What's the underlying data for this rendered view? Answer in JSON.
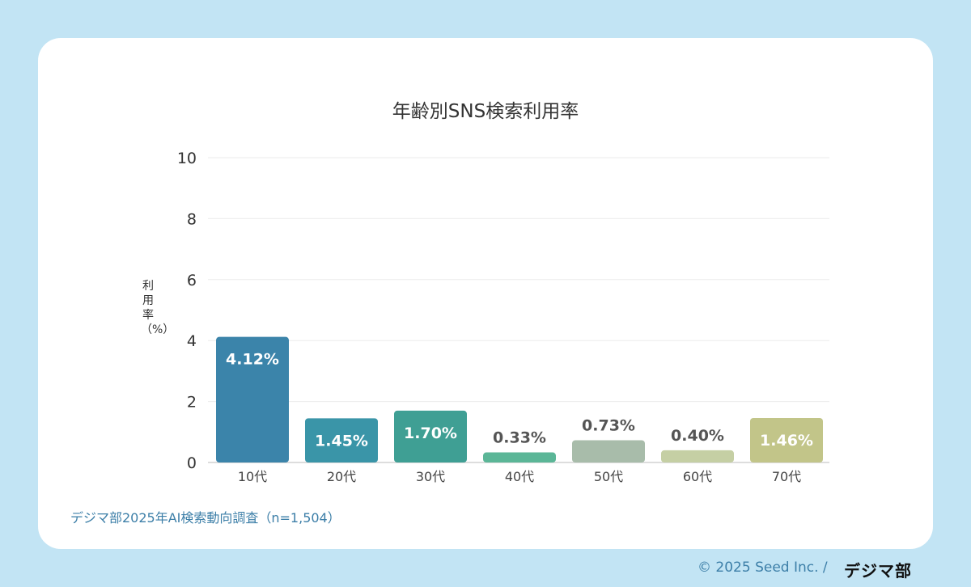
{
  "chart_data": {
    "type": "bar",
    "title": "年齢別SNS検索利用率",
    "ylabel": "利用率（%）",
    "xlabel": "",
    "categories": [
      "10代",
      "20代",
      "30代",
      "40代",
      "50代",
      "60代",
      "70代"
    ],
    "values": [
      4.12,
      1.45,
      1.7,
      0.33,
      0.73,
      0.4,
      1.46
    ],
    "data_labels": [
      "4.12%",
      "1.45%",
      "1.70%",
      "0.33%",
      "0.73%",
      "0.40%",
      "1.46%"
    ],
    "colors": [
      "#3b84aa",
      "#3a95a8",
      "#3f9f94",
      "#5bb697",
      "#a8bcaa",
      "#c5cfa4",
      "#c2c589"
    ],
    "ylim": [
      0,
      10
    ],
    "yticks": [
      0,
      2,
      4,
      6,
      8,
      10
    ],
    "grid": true
  },
  "source": "デジマ部2025年AI検索動向調査（n=1,504）",
  "footer": {
    "copyright": "© 2025 Seed Inc. /",
    "logo": "デジマ部"
  }
}
